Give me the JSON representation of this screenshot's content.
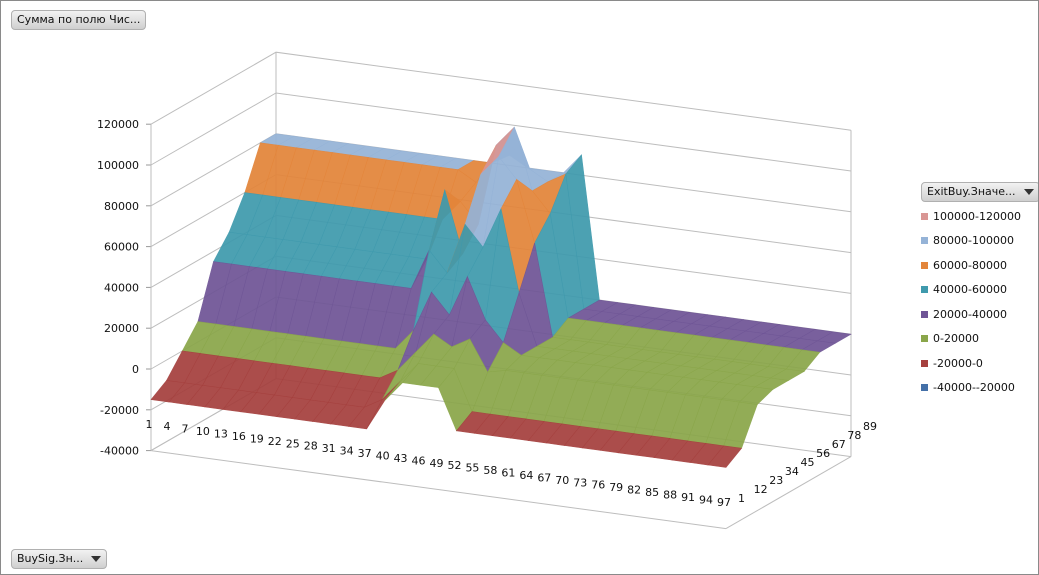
{
  "buttons": {
    "values_field": "Сумма по полю Чис...",
    "legend_field": "ExitBuy.Значе...",
    "axis_field": "BuySig.Зн..."
  },
  "chart_data": {
    "type": "surface",
    "title": "",
    "x_categories": [
      "1",
      "4",
      "7",
      "10",
      "13",
      "16",
      "19",
      "22",
      "25",
      "28",
      "31",
      "34",
      "37",
      "40",
      "43",
      "46",
      "49",
      "52",
      "55",
      "58",
      "61",
      "64",
      "67",
      "70",
      "73",
      "76",
      "79",
      "82",
      "85",
      "88",
      "91",
      "94",
      "97"
    ],
    "y_series": [
      "1",
      "12",
      "23",
      "34",
      "45",
      "56",
      "67",
      "78",
      "89"
    ],
    "z_ticks": [
      "-40000",
      "-20000",
      "0",
      "20000",
      "40000",
      "60000",
      "80000",
      "100000",
      "120000"
    ],
    "zlim": [
      -40000,
      120000
    ],
    "grid": true,
    "legend_position": "right",
    "legend": [
      {
        "label": "100000-120000",
        "color": "#d99694",
        "min": 100000,
        "max": 120000
      },
      {
        "label": "80000-100000",
        "color": "#95b3d7",
        "min": 80000,
        "max": 100000
      },
      {
        "label": "60000-80000",
        "color": "#e3853a",
        "min": 60000,
        "max": 80000
      },
      {
        "label": "40000-60000",
        "color": "#3f9aad",
        "min": 40000,
        "max": 60000
      },
      {
        "label": "20000-40000",
        "color": "#6f5596",
        "min": 20000,
        "max": 40000
      },
      {
        "label": "0-20000",
        "color": "#8aa64a",
        "min": 0,
        "max": 20000
      },
      {
        "label": "-20000-0",
        "color": "#a5403e",
        "min": -20000,
        "max": 0
      },
      {
        "label": "-40000--20000",
        "color": "#4470a8",
        "min": -40000,
        "max": -20000
      }
    ],
    "values": [
      [
        -15000,
        -15000,
        -15000,
        -15000,
        -15000,
        -15000,
        -15000,
        -15000,
        -15000,
        -15000,
        -15000,
        -15000,
        -15000,
        0,
        10000,
        10000,
        10000,
        -10000,
        -10000,
        -10000,
        -10000,
        -10000,
        -10000,
        -10000,
        -10000,
        -10000,
        -10000,
        -10000,
        -10000,
        -10000,
        -10000,
        -10000,
        -10000
      ],
      [
        -10000,
        -10000,
        -10000,
        -10000,
        -10000,
        -10000,
        -10000,
        -10000,
        -10000,
        -10000,
        -10000,
        -10000,
        -5000,
        5000,
        15000,
        15000,
        15000,
        -5000,
        -5000,
        -5000,
        -5000,
        -5000,
        -5000,
        -5000,
        -5000,
        -5000,
        -5000,
        -5000,
        -5000,
        -5000,
        -5000,
        -5000,
        -5000
      ],
      [
        0,
        0,
        0,
        0,
        0,
        0,
        0,
        0,
        0,
        0,
        0,
        0,
        5000,
        15000,
        25000,
        20000,
        25000,
        10000,
        12000,
        12000,
        12000,
        12000,
        12000,
        12000,
        12000,
        12000,
        12000,
        12000,
        12000,
        12000,
        12000,
        12000,
        12000
      ],
      [
        10000,
        10000,
        10000,
        10000,
        10000,
        10000,
        10000,
        10000,
        10000,
        10000,
        10000,
        10000,
        20000,
        40000,
        30000,
        50000,
        30000,
        20000,
        15000,
        15000,
        15000,
        15000,
        15000,
        15000,
        15000,
        15000,
        15000,
        15000,
        15000,
        15000,
        15000,
        15000,
        15000
      ],
      [
        35000,
        35000,
        35000,
        35000,
        35000,
        35000,
        35000,
        35000,
        35000,
        35000,
        35000,
        35000,
        55000,
        45000,
        70000,
        60000,
        80000,
        40000,
        15000,
        15000,
        15000,
        15000,
        15000,
        15000,
        15000,
        15000,
        15000,
        15000,
        15000,
        15000,
        15000,
        15000,
        15000
      ],
      [
        45000,
        45000,
        45000,
        45000,
        45000,
        45000,
        45000,
        45000,
        45000,
        45000,
        45000,
        45000,
        80000,
        50000,
        90000,
        100000,
        90000,
        60000,
        15000,
        15000,
        15000,
        15000,
        15000,
        15000,
        15000,
        15000,
        15000,
        15000,
        15000,
        15000,
        15000,
        15000,
        15000
      ],
      [
        60000,
        60000,
        60000,
        60000,
        60000,
        60000,
        60000,
        60000,
        60000,
        60000,
        60000,
        60000,
        70000,
        60000,
        100000,
        110000,
        80000,
        70000,
        20000,
        20000,
        20000,
        20000,
        20000,
        20000,
        20000,
        20000,
        20000,
        20000,
        20000,
        20000,
        20000,
        20000,
        20000
      ],
      [
        80000,
        80000,
        80000,
        80000,
        80000,
        80000,
        80000,
        80000,
        80000,
        80000,
        80000,
        80000,
        75000,
        90000,
        95000,
        85000,
        80000,
        85000,
        20000,
        20000,
        20000,
        20000,
        20000,
        20000,
        20000,
        20000,
        20000,
        20000,
        20000,
        20000,
        20000,
        20000,
        20000
      ],
      [
        80000,
        80000,
        80000,
        80000,
        80000,
        80000,
        80000,
        80000,
        80000,
        80000,
        80000,
        80000,
        80000,
        85000,
        80000,
        80000,
        80000,
        90000,
        20000,
        20000,
        20000,
        20000,
        20000,
        20000,
        20000,
        20000,
        20000,
        20000,
        20000,
        20000,
        20000,
        20000,
        20000
      ]
    ]
  }
}
